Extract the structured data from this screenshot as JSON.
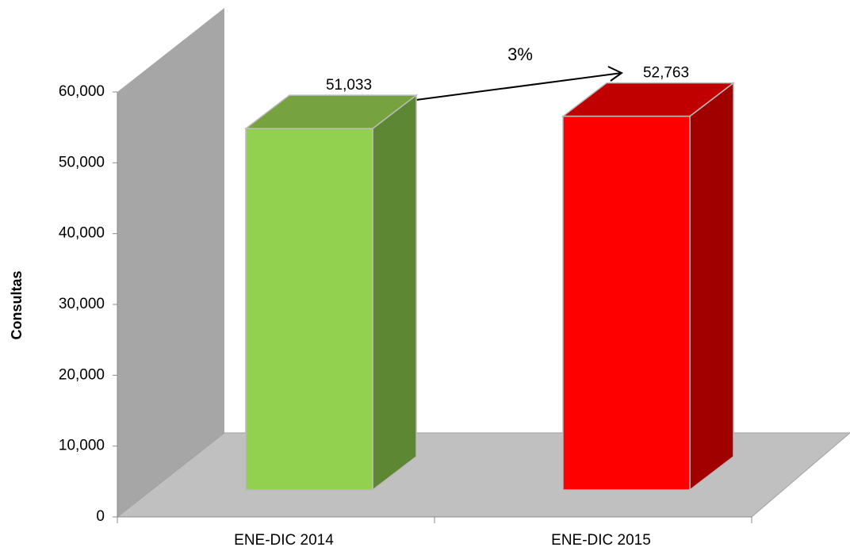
{
  "chart_data": {
    "type": "bar3d",
    "ylabel": "Consultas",
    "categories": [
      "ENE-DIC 2014",
      "ENE-DIC 2015"
    ],
    "values": [
      51033,
      52763
    ],
    "value_labels": [
      "51,033",
      "52,763"
    ],
    "colors": [
      "#92d050",
      "#ff0000"
    ],
    "side_colors": [
      "#5e8733",
      "#a00000"
    ],
    "top_colors": [
      "#76a33f",
      "#c00000"
    ],
    "annotation": "3%",
    "ylim": [
      0,
      60000
    ],
    "yticks": [
      0,
      {
        "value": 10000,
        "label": "10,000"
      },
      {
        "value": 20000,
        "label": "20,000"
      },
      {
        "value": 30000,
        "label": "30,000"
      },
      {
        "value": 40000,
        "label": "40,000"
      },
      {
        "value": 50000,
        "label": "50,000"
      },
      {
        "value": 60000,
        "label": "60,000"
      }
    ]
  }
}
